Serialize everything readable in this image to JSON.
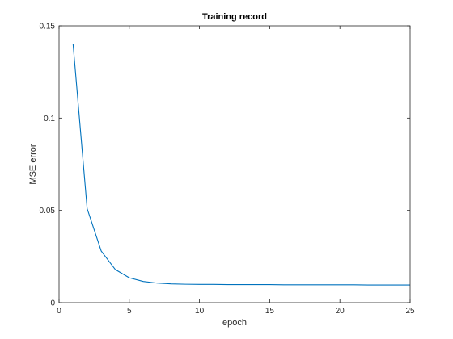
{
  "chart_data": {
    "type": "line",
    "title": "Training record",
    "xlabel": "epoch",
    "ylabel": "MSE error",
    "xlim": [
      0,
      25
    ],
    "ylim": [
      0,
      0.15
    ],
    "x_ticks": [
      0,
      5,
      10,
      15,
      20,
      25
    ],
    "y_ticks": [
      0,
      0.05,
      0.1,
      0.15
    ],
    "x_tick_labels": [
      "0",
      "5",
      "10",
      "15",
      "20",
      "25"
    ],
    "y_tick_labels": [
      "0",
      "0.05",
      "0.1",
      "0.15"
    ],
    "grid": false,
    "box": true,
    "series": [
      {
        "color": "#0072bd",
        "x": [
          1,
          2,
          3,
          4,
          5,
          6,
          7,
          8,
          9,
          10,
          11,
          12,
          13,
          14,
          15,
          16,
          17,
          18,
          19,
          20,
          21,
          22,
          23,
          24,
          25
        ],
        "y": [
          0.14,
          0.051,
          0.028,
          0.018,
          0.0135,
          0.0115,
          0.0106,
          0.0102,
          0.01,
          0.0099,
          0.0099,
          0.0098,
          0.0098,
          0.0098,
          0.0098,
          0.0097,
          0.0097,
          0.0097,
          0.0097,
          0.0097,
          0.0097,
          0.0096,
          0.0096,
          0.0096,
          0.0096
        ]
      }
    ]
  }
}
